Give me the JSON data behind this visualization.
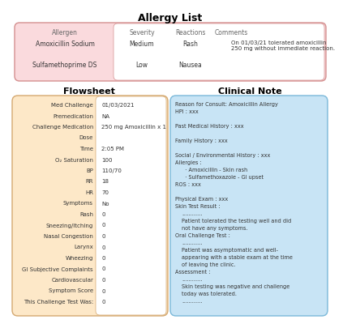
{
  "title": "Allergy List",
  "allergy_header": [
    "Allergen",
    "Severity",
    "Reactions",
    "Comments"
  ],
  "allergy_rows": [
    [
      "Amoxicillin Sodium",
      "Medium",
      "Rash",
      "On 01/03/21 tolerated amoxicillin\n250 mg without immediate reaction."
    ],
    [
      "Sulfamethoprime DS",
      "Low",
      "Nausea",
      ""
    ]
  ],
  "allergy_bg": "#fadadd",
  "allergy_edge": "#d49090",
  "allergy_white": "#ffffff",
  "flowsheet_title": "Flowsheet",
  "flowsheet_bg": "#fde8c8",
  "flowsheet_edge": "#d4a870",
  "flowsheet_white": "#ffffff",
  "flowsheet_labels": [
    "Med Challenge",
    "Premedication",
    "Challenge Medication",
    "Dose",
    "Time",
    "O₂ Saturation",
    "BP",
    "RR",
    "HR",
    "Symptoms",
    "Rash",
    "Sneezing/Itching",
    "Nasal Congestion",
    "Larynx",
    "Wheezing",
    "GI Subjective Complaints",
    "Cardiovascular",
    "Symptom Score",
    "This Challenge Test Was:"
  ],
  "flowsheet_values": [
    "01/03/2021",
    "NA",
    "250 mg Amoxicillin x 1",
    "",
    "2:05 PM",
    "100",
    "110/70",
    "18",
    "70",
    "No",
    "0",
    "0",
    "0",
    "0",
    "0",
    "0",
    "0",
    "0",
    "0"
  ],
  "clinical_title": "Clinical Note",
  "clinical_bg": "#c8e4f5",
  "clinical_edge": "#7ab8d9",
  "clinical_lines": [
    {
      "text": "Reason for Consult: Amoxicillin Allergy",
      "indent": 0
    },
    {
      "text": "HPI : xxx",
      "indent": 0
    },
    {
      "text": "",
      "indent": 0
    },
    {
      "text": "Past Medical History : xxx",
      "indent": 0
    },
    {
      "text": "",
      "indent": 0
    },
    {
      "text": "Family History : xxx",
      "indent": 0
    },
    {
      "text": "",
      "indent": 0
    },
    {
      "text": "Social / Environmental History : xxx",
      "indent": 0
    },
    {
      "text": "Allergies :",
      "indent": 0
    },
    {
      "text": "  · Amoxicillin - Skin rash",
      "indent": 1
    },
    {
      "text": "  · Sulfamethoxazole - GI upset",
      "indent": 1
    },
    {
      "text": "ROS : xxx",
      "indent": 0
    },
    {
      "text": "",
      "indent": 0
    },
    {
      "text": "Physical Exam : xxx",
      "indent": 0
    },
    {
      "text": "Skin Test Result :",
      "indent": 0
    },
    {
      "text": "............",
      "indent": 1
    },
    {
      "text": "Patient tolerated the testing well and did",
      "indent": 1
    },
    {
      "text": "not have any symptoms.",
      "indent": 1
    },
    {
      "text": "Oral Challenge Test :",
      "indent": 0
    },
    {
      "text": "............",
      "indent": 1
    },
    {
      "text": "Patient was asymptomatic and well-",
      "indent": 1
    },
    {
      "text": "appearing with a stable exam at the time",
      "indent": 1
    },
    {
      "text": "of leaving the clinic.",
      "indent": 1
    },
    {
      "text": "Assessment :",
      "indent": 0
    },
    {
      "text": "............",
      "indent": 1
    },
    {
      "text": "Skin testing was negative and challenge",
      "indent": 1
    },
    {
      "text": "today was tolerated.",
      "indent": 1
    },
    {
      "text": "............",
      "indent": 1
    }
  ],
  "bg_color": "#ffffff",
  "text_color": "#333333",
  "header_color": "#666666"
}
